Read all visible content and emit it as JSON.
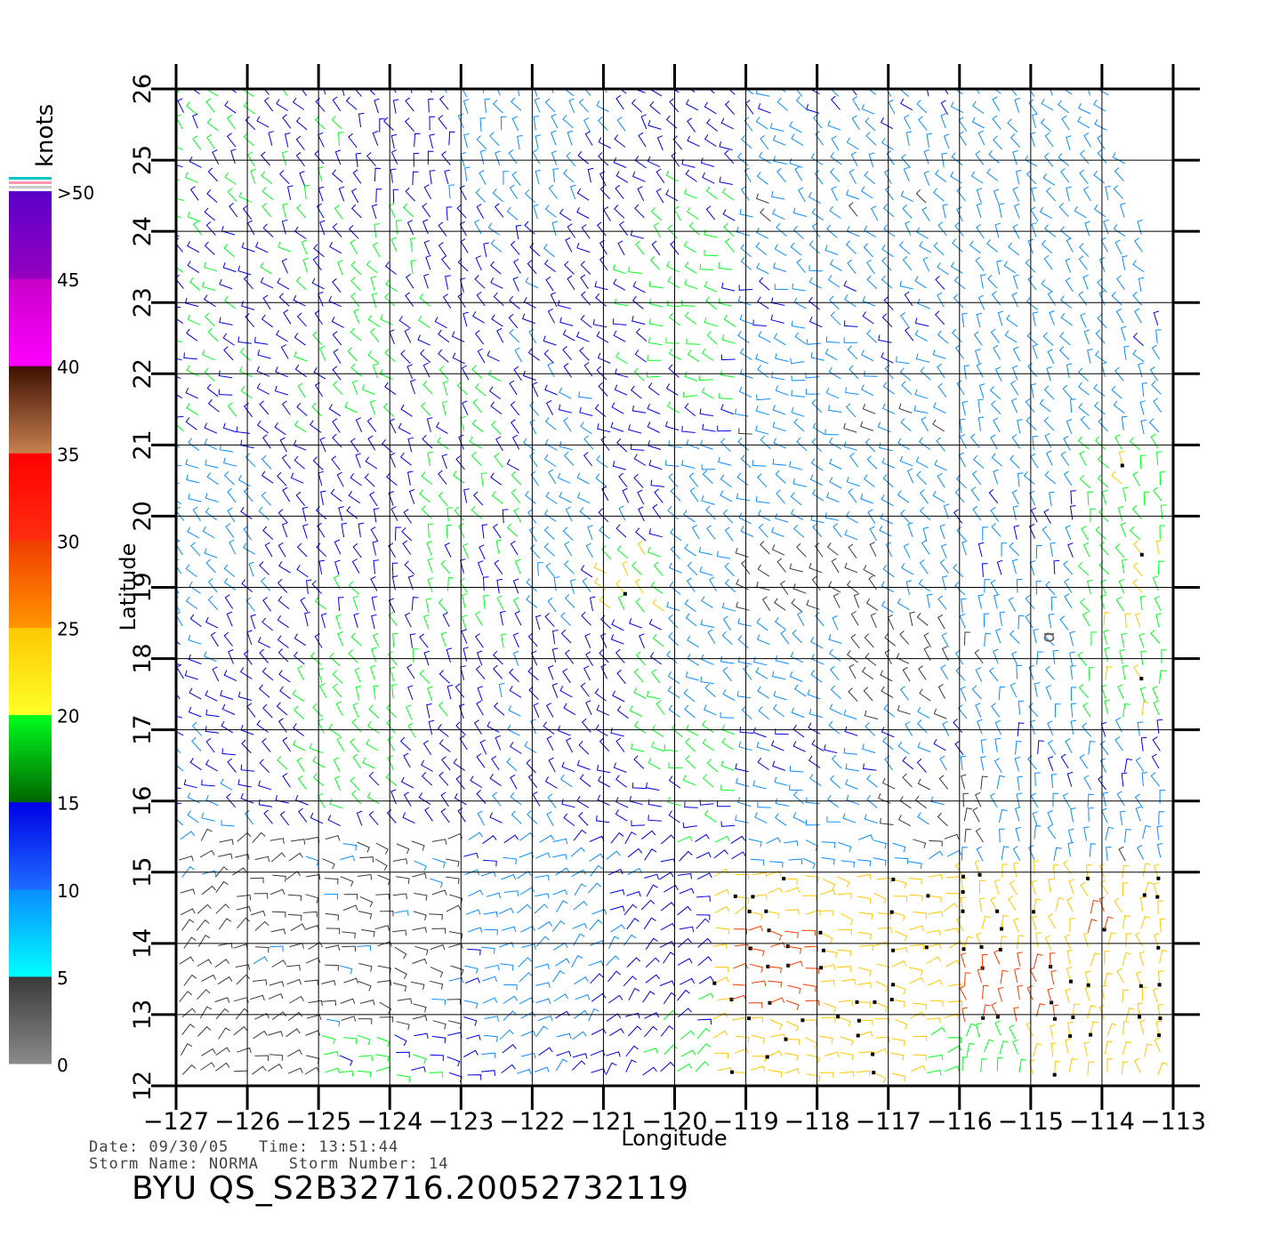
{
  "units_label": "knots",
  "colorbar": {
    "labels": [
      "0",
      "5",
      "10",
      "15",
      "20",
      "25",
      "30",
      "35",
      "40",
      "45",
      ">50"
    ],
    "bands": [
      {
        "from": 0,
        "to": 5,
        "top": "#3a3a3a",
        "bottom": "#8a8a8a"
      },
      {
        "from": 5,
        "to": 10,
        "top": "#0a8cff",
        "bottom": "#00ffff"
      },
      {
        "from": 10,
        "to": 15,
        "top": "#0000e6",
        "bottom": "#1e6cff"
      },
      {
        "from": 15,
        "to": 20,
        "top": "#00ff1e",
        "bottom": "#006400"
      },
      {
        "from": 20,
        "to": 25,
        "top": "#ffc800",
        "bottom": "#ffff28"
      },
      {
        "from": 25,
        "to": 30,
        "top": "#f03c00",
        "bottom": "#ff9600"
      },
      {
        "from": 30,
        "to": 35,
        "top": "#ff0000",
        "bottom": "#ff2d10"
      },
      {
        "from": 35,
        "to": 40,
        "top": "#3c1000",
        "bottom": "#c88050"
      },
      {
        "from": 40,
        "to": 45,
        "top": "#c800c8",
        "bottom": "#ff00ff"
      },
      {
        "from": 45,
        "to": 50,
        "top": "#5a00c8",
        "bottom": "#9600c0"
      }
    ],
    "stripes": [
      "#00c8c8",
      "#ff96b4",
      "#c8c8c8"
    ]
  },
  "axes": {
    "x_title": "Longitude",
    "y_title": "Latitude",
    "lon_range": [
      -127,
      -113
    ],
    "lat_range": [
      12,
      26
    ],
    "lon_ticks": [
      "-127",
      "-126",
      "-125",
      "-124",
      "-123",
      "-122",
      "-121",
      "-120",
      "-119",
      "-118",
      "-117",
      "-116",
      "-115",
      "-114",
      "-113"
    ],
    "lat_ticks": [
      "12",
      "13",
      "14",
      "15",
      "16",
      "17",
      "18",
      "19",
      "20",
      "21",
      "22",
      "23",
      "24",
      "25",
      "26"
    ]
  },
  "storm_marker": {
    "symbol": "ɑ",
    "lon": -114.75,
    "lat": 18.3,
    "color": "#606060"
  },
  "metadata": {
    "date_line": "Date: 09/30/05   Time: 13:51:44",
    "storm_line": "Storm Name: NORMA   Storm Number: 14"
  },
  "file_title": "BYU QS_S2B32716.20052732119",
  "wind_field": {
    "swath_east_edge": [
      [
        26,
        -113.9
      ],
      [
        24,
        -113.4
      ],
      [
        22,
        -113.05
      ],
      [
        20,
        -112.95
      ],
      [
        16,
        -112.95
      ],
      [
        12,
        -112.95
      ]
    ],
    "regions": [
      {
        "lon": [
          -127,
          -124.5
        ],
        "lat": [
          21,
          26
        ],
        "speed": 14.5
      },
      {
        "lon": [
          -123.5,
          -122
        ],
        "lat": [
          18,
          22
        ],
        "speed": 15.5
      },
      {
        "lon": [
          -121,
          -120
        ],
        "lat": [
          18.5,
          19.5
        ],
        "speed": 20
      },
      {
        "lon": [
          -120,
          -116
        ],
        "lat": [
          17,
          21
        ],
        "speed": 7
      },
      {
        "lon": [
          -119,
          -117
        ],
        "lat": [
          18.5,
          19.5
        ],
        "speed": 3.5
      },
      {
        "lon": [
          -117.5,
          -116
        ],
        "lat": [
          17,
          18.5
        ],
        "speed": 4
      },
      {
        "lon": [
          -116,
          -113.5
        ],
        "lat": [
          21,
          26
        ],
        "speed": 8
      },
      {
        "lon": [
          -114.2,
          -113
        ],
        "lat": [
          17,
          21
        ],
        "speed": 19
      },
      {
        "lon": [
          -127,
          -123
        ],
        "lat": [
          12.8,
          15.6
        ],
        "speed": 4
      },
      {
        "lon": [
          -127,
          -125
        ],
        "lat": [
          12,
          13.5
        ],
        "speed": 3
      },
      {
        "lon": [
          -117,
          -115.5
        ],
        "lat": [
          15.2,
          16.2
        ],
        "speed": 4
      },
      {
        "lon": [
          -119.5,
          -113
        ],
        "lat": [
          12,
          15
        ],
        "speed": 22
      },
      {
        "lon": [
          -119.3,
          -118
        ],
        "lat": [
          13,
          14.3
        ],
        "speed": 28
      },
      {
        "lon": [
          -116,
          -114.5
        ],
        "lat": [
          12.8,
          13.8
        ],
        "speed": 27
      },
      {
        "lon": [
          -114.3,
          -113.8
        ],
        "lat": [
          14.1,
          14.6
        ],
        "speed": 26
      },
      {
        "lon": [
          -116.5,
          -115
        ],
        "lat": [
          12,
          12.8
        ],
        "speed": 18
      }
    ]
  }
}
